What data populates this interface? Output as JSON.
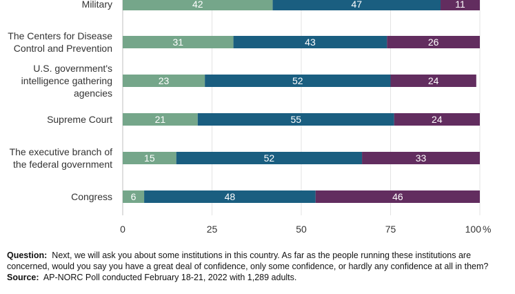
{
  "chart_data": {
    "type": "bar",
    "orientation": "horizontal",
    "stacked": true,
    "categories": [
      [
        "Military"
      ],
      [
        "The Centers for Disease",
        "Control and Prevention"
      ],
      [
        "U.S. government's",
        "intelligence gathering",
        "agencies"
      ],
      [
        "Supreme Court"
      ],
      [
        "The executive branch of",
        "the federal government"
      ],
      [
        "Congress"
      ]
    ],
    "series": [
      {
        "values": [
          42,
          31,
          23,
          21,
          15,
          6
        ],
        "color": "#75a68a"
      },
      {
        "values": [
          47,
          43,
          52,
          55,
          52,
          48
        ],
        "color": "#1a5e80"
      },
      {
        "values": [
          11,
          26,
          24,
          24,
          33,
          46
        ],
        "color": "#622d5f"
      }
    ],
    "xlim": [
      0,
      100
    ],
    "xticks": [
      "0",
      "25",
      "50",
      "75",
      "100"
    ],
    "x_unit": "%",
    "grid": true
  },
  "footnote": {
    "question_label": "Question:",
    "question_text": "Next, we will ask you about some institutions in this country. As far as the people running these institutions are concerned, would you say you have a great deal of confidence, only some confidence, or hardly any confidence at all in them?",
    "source_label": "Source:",
    "source_text": "AP-NORC Poll conducted February 18-21, 2022 with 1,289 adults."
  }
}
